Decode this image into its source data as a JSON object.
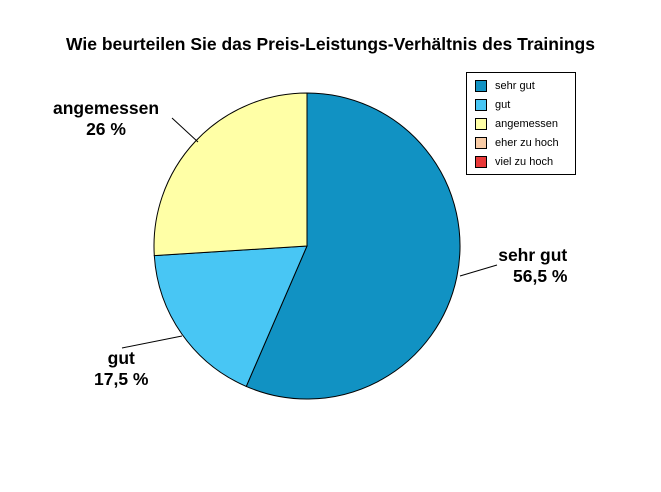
{
  "chart_data": {
    "type": "pie",
    "title": "Wie beurteilen Sie das Preis-Leistungs-Verhältnis des Trainings",
    "legend_position": "top-right",
    "categories": [
      "sehr gut",
      "gut",
      "angemessen",
      "eher zu hoch",
      "viel zu hoch"
    ],
    "values": [
      56.5,
      17.5,
      26,
      0,
      0
    ],
    "colors": [
      "#1192c3",
      "#48c6f4",
      "#ffffa6",
      "#f9cca6",
      "#e83838"
    ],
    "data_labels": [
      {
        "name": "sehr gut",
        "value": "56,5 %"
      },
      {
        "name": "gut",
        "value": "17,5 %"
      },
      {
        "name": "angemessen",
        "value": "26 %"
      }
    ]
  }
}
